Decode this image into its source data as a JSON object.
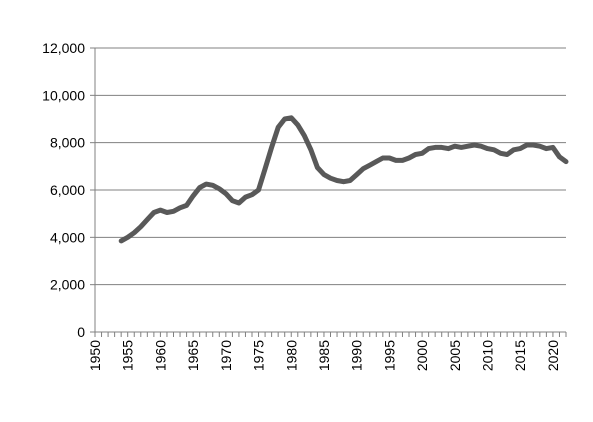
{
  "chart_data": {
    "type": "line",
    "title": "",
    "xlabel": "",
    "ylabel": "",
    "xlim": [
      1950,
      2022
    ],
    "ylim": [
      0,
      12000
    ],
    "grid": "horizontal",
    "legend": "none",
    "x_ticks": [
      "1950",
      "1955",
      "1960",
      "1965",
      "1970",
      "1975",
      "1980",
      "1985",
      "1990",
      "1995",
      "2000",
      "2005",
      "2010",
      "2015",
      "2020"
    ],
    "y_ticks": [
      "0",
      "2,000",
      "4,000",
      "6,000",
      "8,000",
      "10,000",
      "12,000"
    ],
    "series": [
      {
        "color": "#595959",
        "x": [
          1954,
          1955,
          1956,
          1957,
          1958,
          1959,
          1960,
          1961,
          1962,
          1963,
          1964,
          1965,
          1966,
          1967,
          1968,
          1969,
          1970,
          1971,
          1972,
          1973,
          1974,
          1975,
          1976,
          1977,
          1978,
          1979,
          1980,
          1981,
          1982,
          1983,
          1984,
          1985,
          1986,
          1987,
          1988,
          1989,
          1990,
          1991,
          1992,
          1993,
          1994,
          1995,
          1996,
          1997,
          1998,
          1999,
          2000,
          2001,
          2002,
          2003,
          2004,
          2005,
          2006,
          2007,
          2008,
          2009,
          2010,
          2011,
          2012,
          2013,
          2014,
          2015,
          2016,
          2017,
          2018,
          2019,
          2020,
          2021,
          2022
        ],
        "y": [
          3850,
          4000,
          4200,
          4450,
          4750,
          5050,
          5150,
          5050,
          5100,
          5250,
          5350,
          5750,
          6100,
          6250,
          6200,
          6050,
          5850,
          5550,
          5450,
          5700,
          5800,
          6000,
          6900,
          7800,
          8650,
          9000,
          9050,
          8750,
          8300,
          7700,
          6950,
          6650,
          6500,
          6400,
          6350,
          6400,
          6650,
          6900,
          7050,
          7200,
          7350,
          7350,
          7250,
          7250,
          7350,
          7500,
          7550,
          7750,
          7800,
          7800,
          7750,
          7850,
          7800,
          7850,
          7900,
          7850,
          7750,
          7700,
          7550,
          7500,
          7700,
          7750,
          7900,
          7900,
          7850,
          7750,
          7800,
          7400,
          7200
        ]
      }
    ]
  }
}
